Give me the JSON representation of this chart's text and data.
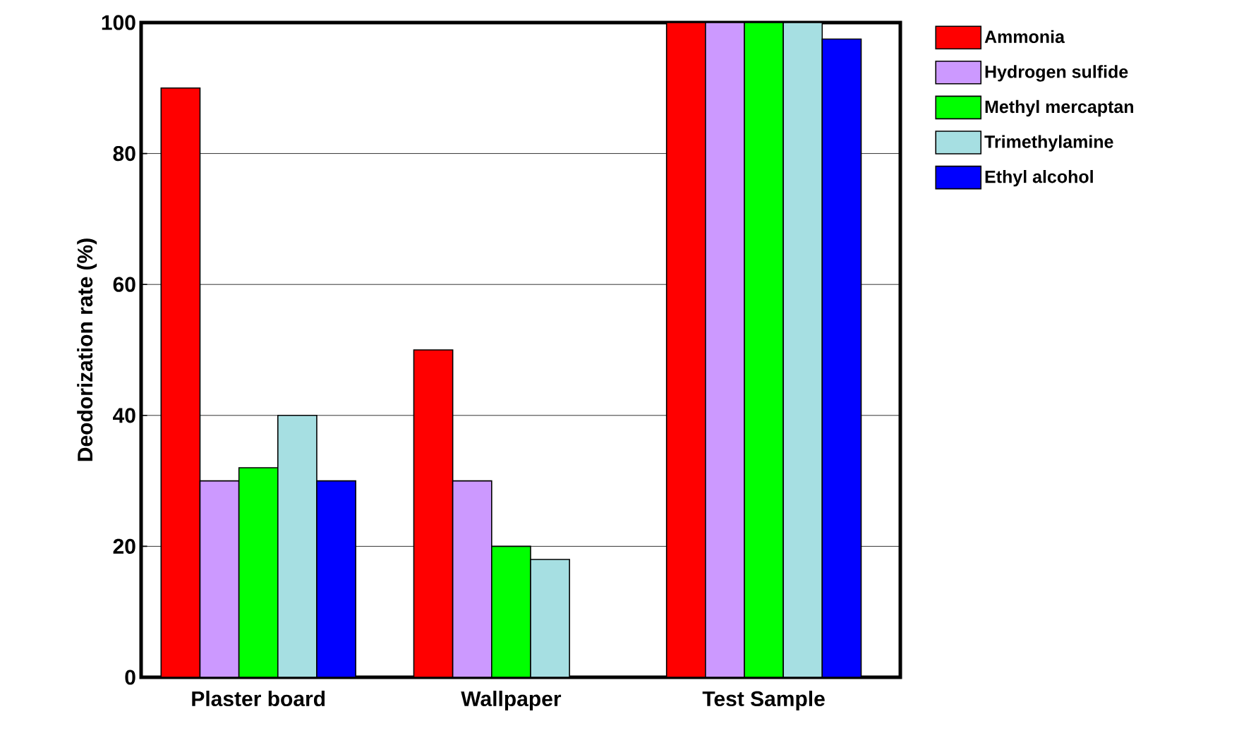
{
  "chart_data": {
    "type": "bar",
    "ylabel": "Deodorization rate (%)",
    "categories": [
      "Plaster board",
      "Wallpaper",
      "Test Sample"
    ],
    "series": [
      {
        "name": "Ammonia",
        "color": "#ff0000",
        "values": [
          90,
          50,
          100
        ]
      },
      {
        "name": "Hydrogen sulfide",
        "color": "#cc99ff",
        "values": [
          30,
          30,
          100
        ]
      },
      {
        "name": "Methyl mercaptan",
        "color": "#00ff00",
        "values": [
          32,
          20,
          100
        ]
      },
      {
        "name": "Trimethylamine",
        "color": "#a6dfe2",
        "values": [
          40,
          18,
          100
        ]
      },
      {
        "name": "Ethyl alcohol",
        "color": "#0000ff",
        "values": [
          30,
          null,
          97.5
        ]
      }
    ],
    "ylim": [
      0,
      100
    ],
    "yticks": [
      0,
      20,
      40,
      60,
      80,
      100
    ],
    "grid": "y",
    "legend": "top right"
  }
}
